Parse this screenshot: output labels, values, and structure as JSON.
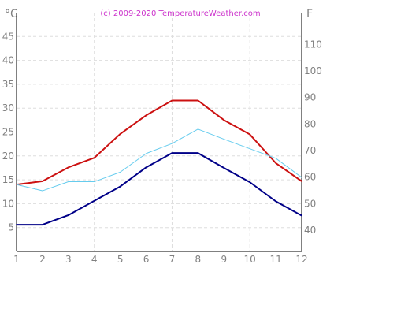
{
  "chart_data": {
    "type": "line",
    "title": "(c) 2009-2020  TemperatureWeather.com",
    "left_unit": "°C",
    "right_unit": "F",
    "x": [
      1,
      2,
      3,
      4,
      5,
      6,
      7,
      8,
      9,
      10,
      11,
      12
    ],
    "xlim": [
      1,
      12
    ],
    "ylim": [
      0,
      50
    ],
    "y_ticks": [
      5,
      10,
      15,
      20,
      25,
      30,
      35,
      40,
      45
    ],
    "right_ticks": [
      40,
      50,
      60,
      70,
      80,
      90,
      100,
      110
    ],
    "grid": true,
    "series": [
      {
        "color": "#cc1111",
        "width": 2,
        "values": [
          14,
          14.7,
          17.6,
          19.6,
          24.6,
          28.5,
          31.6,
          31.6,
          27.5,
          24.5,
          18.5,
          14.7
        ]
      },
      {
        "color": "#66ccee",
        "width": 1,
        "values": [
          14,
          12.7,
          14.6,
          14.6,
          16.6,
          20.5,
          22.6,
          25.6,
          23.5,
          21.5,
          19.5,
          15.5
        ]
      },
      {
        "color": "#000088",
        "width": 2,
        "values": [
          5.6,
          5.6,
          7.6,
          10.6,
          13.6,
          17.6,
          20.6,
          20.6,
          17.5,
          14.5,
          10.5,
          7.5
        ]
      }
    ]
  }
}
